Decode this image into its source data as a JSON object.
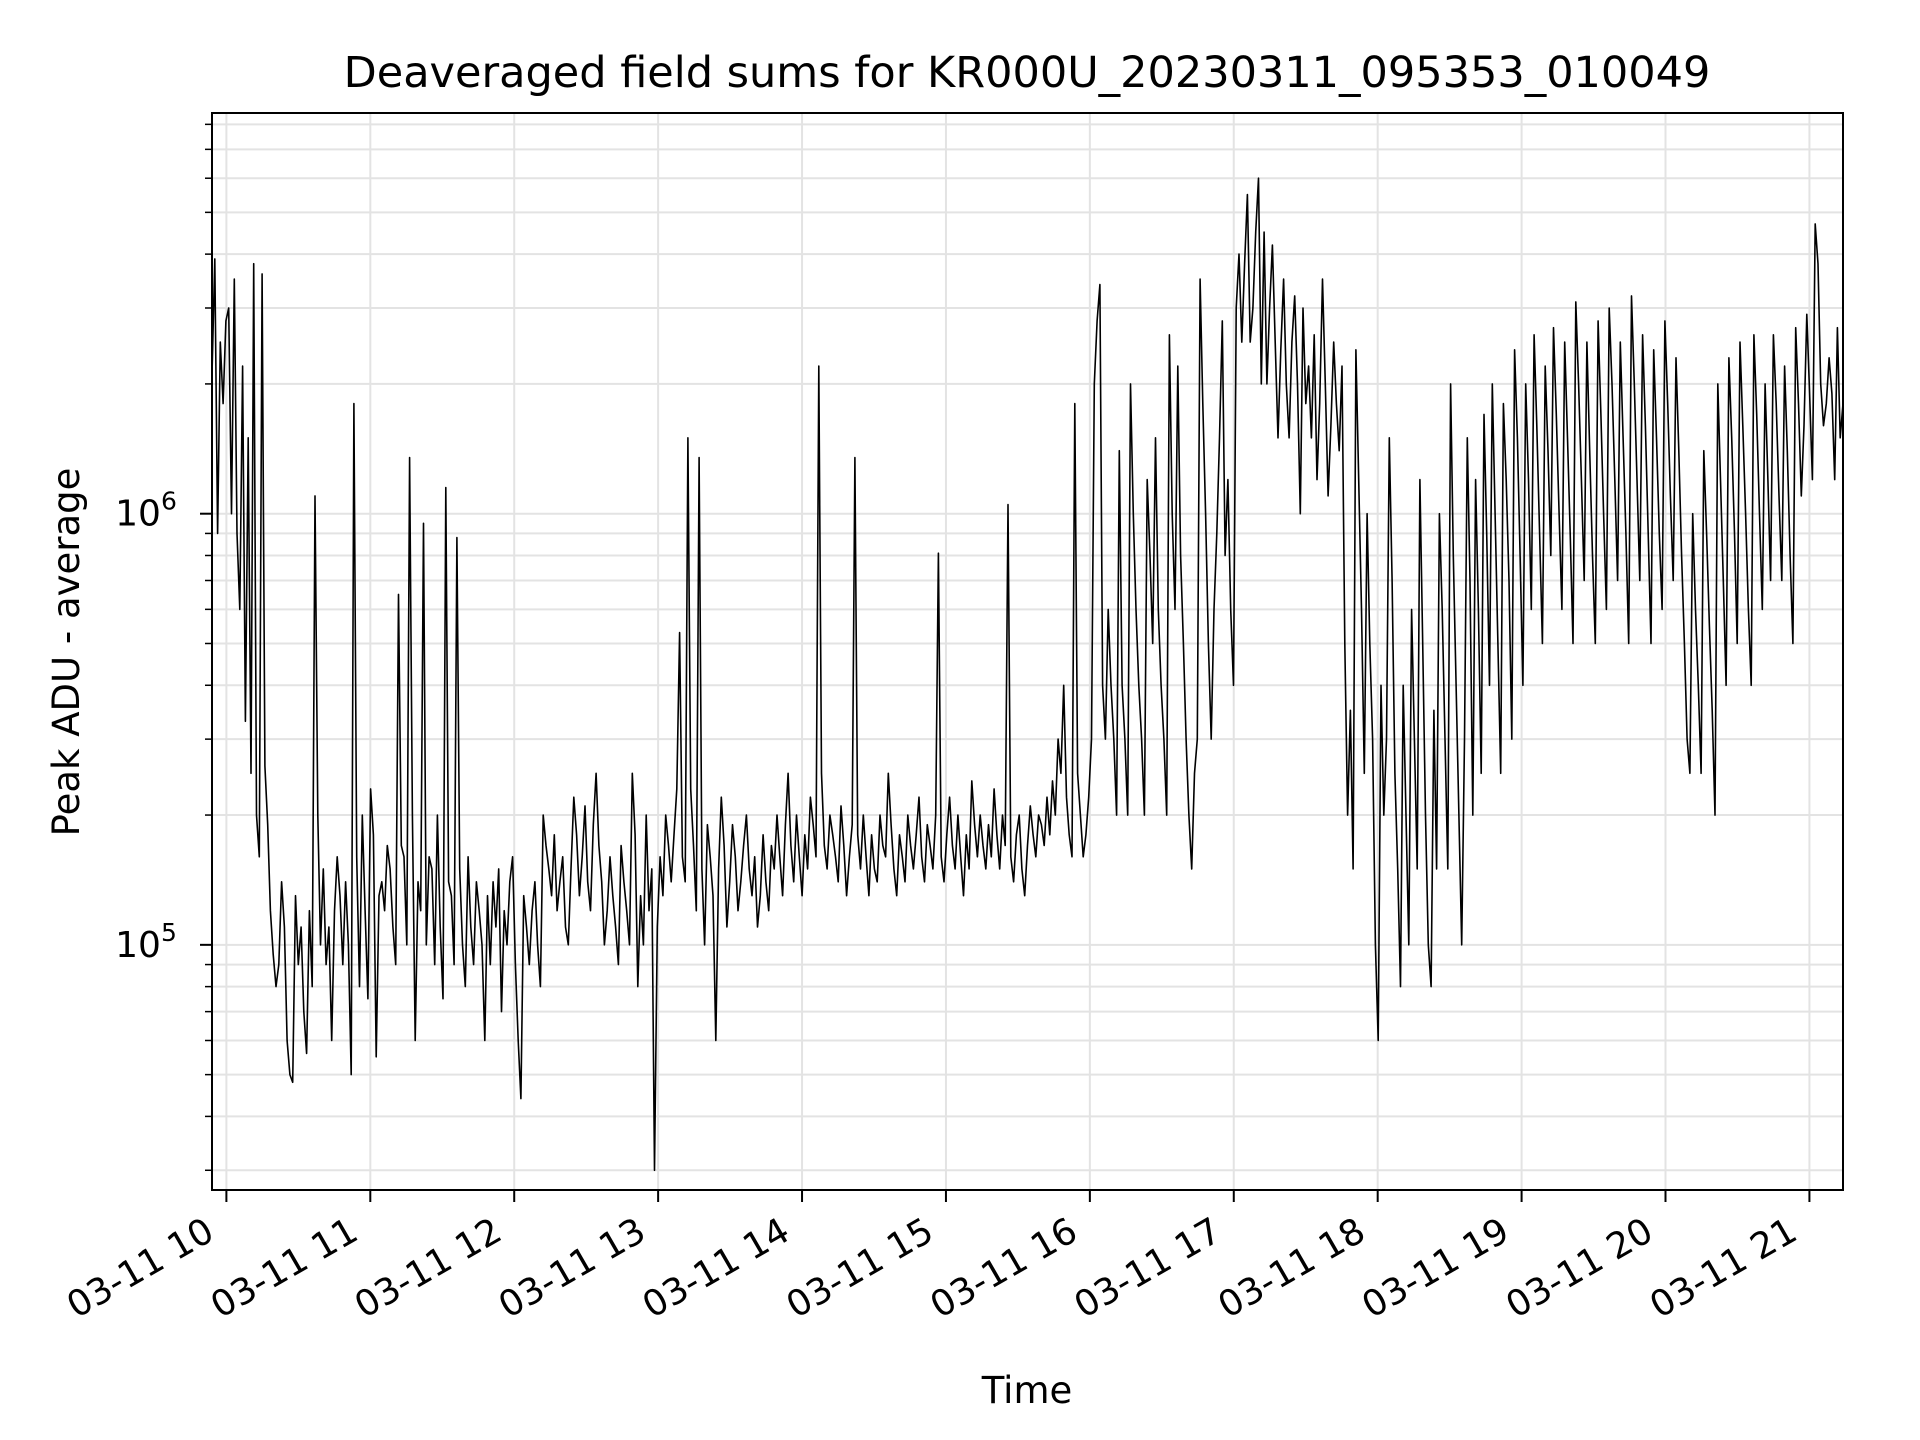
{
  "chart_data": {
    "type": "line",
    "title": "Deaveraged field sums for KR000U_20230311_095353_010049",
    "xlabel": "Time",
    "ylabel": "Peak ADU - average",
    "yscale": "log",
    "grid": true,
    "line_color": "#000000",
    "x_start": "2023-03-11 09:54",
    "x_end": "2023-03-11 21:14",
    "xlim": [
      "2023-03-11 09:54",
      "2023-03-11 21:14"
    ],
    "ylim": [
      27000,
      8500000
    ],
    "x_ticks": [
      "03-11 10",
      "03-11 11",
      "03-11 12",
      "03-11 13",
      "03-11 14",
      "03-11 15",
      "03-11 16",
      "03-11 17",
      "03-11 18",
      "03-11 19",
      "03-11 20",
      "03-11 21"
    ],
    "y_ticks": [
      {
        "value": 100000,
        "base": "10",
        "exp": "5"
      },
      {
        "value": 1000000,
        "base": "10",
        "exp": "6"
      }
    ],
    "values": [
      2100000,
      3900000,
      900000,
      2500000,
      1800000,
      2800000,
      3000000,
      1000000,
      3500000,
      900000,
      600000,
      2200000,
      330000,
      1500000,
      250000,
      3800000,
      200000,
      160000,
      3600000,
      260000,
      190000,
      120000,
      95000,
      80000,
      90000,
      140000,
      110000,
      60000,
      50000,
      48000,
      130000,
      90000,
      110000,
      70000,
      56000,
      120000,
      80000,
      1100000,
      200000,
      100000,
      150000,
      90000,
      110000,
      60000,
      120000,
      160000,
      130000,
      90000,
      140000,
      100000,
      50000,
      1800000,
      160000,
      80000,
      200000,
      120000,
      75000,
      230000,
      180000,
      55000,
      130000,
      140000,
      120000,
      170000,
      150000,
      110000,
      90000,
      650000,
      170000,
      160000,
      100000,
      1350000,
      200000,
      60000,
      140000,
      120000,
      950000,
      100000,
      160000,
      150000,
      90000,
      200000,
      110000,
      75000,
      1150000,
      140000,
      130000,
      90000,
      880000,
      150000,
      100000,
      80000,
      160000,
      110000,
      90000,
      140000,
      120000,
      100000,
      60000,
      130000,
      90000,
      140000,
      110000,
      150000,
      70000,
      120000,
      100000,
      140000,
      160000,
      90000,
      60000,
      44000,
      130000,
      110000,
      90000,
      120000,
      140000,
      100000,
      80000,
      200000,
      170000,
      150000,
      130000,
      180000,
      120000,
      140000,
      160000,
      110000,
      100000,
      150000,
      220000,
      180000,
      130000,
      160000,
      210000,
      140000,
      120000,
      190000,
      250000,
      170000,
      140000,
      100000,
      120000,
      160000,
      130000,
      110000,
      90000,
      170000,
      140000,
      120000,
      100000,
      250000,
      180000,
      80000,
      130000,
      100000,
      200000,
      120000,
      150000,
      30000,
      110000,
      160000,
      130000,
      200000,
      170000,
      140000,
      180000,
      230000,
      530000,
      160000,
      140000,
      1500000,
      230000,
      170000,
      120000,
      1350000,
      150000,
      100000,
      190000,
      160000,
      130000,
      60000,
      150000,
      220000,
      170000,
      110000,
      140000,
      190000,
      160000,
      120000,
      140000,
      170000,
      200000,
      150000,
      130000,
      160000,
      110000,
      130000,
      180000,
      140000,
      120000,
      170000,
      150000,
      200000,
      160000,
      130000,
      190000,
      250000,
      170000,
      140000,
      200000,
      160000,
      130000,
      180000,
      150000,
      220000,
      190000,
      160000,
      2200000,
      250000,
      170000,
      150000,
      200000,
      180000,
      160000,
      140000,
      210000,
      170000,
      130000,
      160000,
      190000,
      1350000,
      180000,
      150000,
      200000,
      160000,
      130000,
      180000,
      150000,
      140000,
      200000,
      170000,
      160000,
      250000,
      190000,
      150000,
      130000,
      180000,
      160000,
      140000,
      200000,
      170000,
      150000,
      180000,
      220000,
      160000,
      140000,
      190000,
      170000,
      150000,
      200000,
      810000,
      160000,
      140000,
      180000,
      220000,
      170000,
      150000,
      200000,
      160000,
      130000,
      180000,
      150000,
      240000,
      190000,
      160000,
      200000,
      170000,
      150000,
      190000,
      160000,
      230000,
      180000,
      150000,
      200000,
      170000,
      1050000,
      160000,
      140000,
      180000,
      200000,
      150000,
      130000,
      170000,
      210000,
      180000,
      160000,
      200000,
      190000,
      170000,
      220000,
      180000,
      240000,
      200000,
      300000,
      250000,
      400000,
      220000,
      180000,
      160000,
      1800000,
      250000,
      200000,
      160000,
      180000,
      220000,
      300000,
      2000000,
      2800000,
      3400000,
      400000,
      300000,
      600000,
      400000,
      300000,
      200000,
      1400000,
      400000,
      300000,
      200000,
      2000000,
      1000000,
      600000,
      400000,
      300000,
      200000,
      1200000,
      800000,
      500000,
      1500000,
      600000,
      400000,
      300000,
      200000,
      2600000,
      1000000,
      600000,
      2200000,
      800000,
      500000,
      300000,
      200000,
      150000,
      250000,
      300000,
      3500000,
      1800000,
      1000000,
      500000,
      300000,
      600000,
      900000,
      1500000,
      2800000,
      800000,
      1200000,
      600000,
      400000,
      3000000,
      4000000,
      2500000,
      3800000,
      5500000,
      2500000,
      3000000,
      4500000,
      6000000,
      2000000,
      4500000,
      2000000,
      3000000,
      4200000,
      2500000,
      1500000,
      2400000,
      3500000,
      2000000,
      1500000,
      2500000,
      3200000,
      2000000,
      1000000,
      3000000,
      1800000,
      2200000,
      1500000,
      2600000,
      1200000,
      1800000,
      3500000,
      2000000,
      1100000,
      1600000,
      2500000,
      1800000,
      1400000,
      2200000,
      500000,
      200000,
      350000,
      150000,
      2400000,
      1200000,
      600000,
      250000,
      1000000,
      500000,
      300000,
      100000,
      60000,
      400000,
      200000,
      300000,
      1500000,
      700000,
      250000,
      150000,
      80000,
      400000,
      200000,
      100000,
      600000,
      300000,
      150000,
      1200000,
      500000,
      200000,
      100000,
      80000,
      350000,
      150000,
      1000000,
      600000,
      300000,
      150000,
      2000000,
      800000,
      400000,
      200000,
      100000,
      300000,
      1500000,
      700000,
      200000,
      1200000,
      600000,
      250000,
      1700000,
      900000,
      400000,
      2000000,
      1000000,
      500000,
      250000,
      1800000,
      1200000,
      700000,
      300000,
      2400000,
      1500000,
      800000,
      400000,
      2000000,
      1200000,
      600000,
      2600000,
      1600000,
      900000,
      500000,
      2200000,
      1400000,
      800000,
      2700000,
      1700000,
      1000000,
      600000,
      2500000,
      1500000,
      900000,
      500000,
      3100000,
      2000000,
      1200000,
      700000,
      2500000,
      1400000,
      800000,
      500000,
      2800000,
      1700000,
      1000000,
      600000,
      3000000,
      2000000,
      1200000,
      700000,
      2500000,
      1500000,
      900000,
      500000,
      3200000,
      2000000,
      1200000,
      700000,
      2600000,
      1600000,
      900000,
      500000,
      2400000,
      1500000,
      900000,
      600000,
      2800000,
      1800000,
      1100000,
      700000,
      2300000,
      1400000,
      800000,
      500000,
      300000,
      250000,
      1000000,
      600000,
      400000,
      250000,
      1400000,
      900000,
      550000,
      350000,
      200000,
      2000000,
      1200000,
      700000,
      400000,
      2300000,
      1500000,
      900000,
      500000,
      2500000,
      1600000,
      1000000,
      600000,
      400000,
      2600000,
      1700000,
      1000000,
      600000,
      2000000,
      1200000,
      700000,
      2600000,
      1800000,
      1100000,
      700000,
      2200000,
      1400000,
      800000,
      500000,
      2700000,
      1800000,
      1100000,
      1600000,
      2900000,
      1900000,
      1200000,
      4700000,
      3800000,
      2000000,
      1600000,
      1800000,
      2300000,
      1900000,
      1200000,
      2700000,
      1500000,
      1800000
    ]
  }
}
